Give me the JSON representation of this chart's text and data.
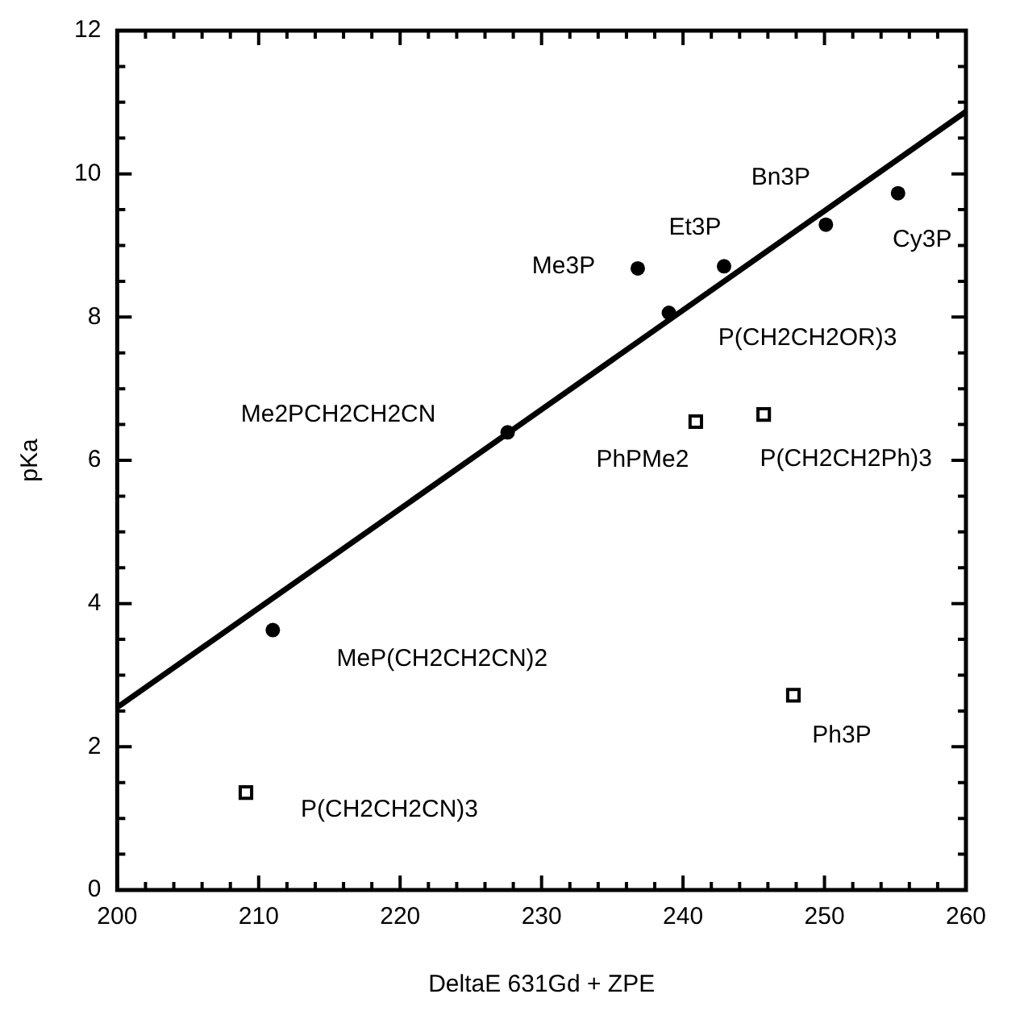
{
  "chart_data": {
    "type": "scatter",
    "xlabel": "DeltaE 631Gd + ZPE",
    "ylabel": "pKa",
    "xlim": [
      200,
      260
    ],
    "ylim": [
      0,
      12
    ],
    "xticks": [
      200,
      {
        "value": 202,
        "label": null
      },
      {
        "value": 204,
        "label": null
      },
      {
        "value": 206,
        "label": null
      },
      {
        "value": 208,
        "label": null
      },
      210,
      {
        "value": 212,
        "label": null
      },
      {
        "value": 214,
        "label": null
      },
      {
        "value": 216,
        "label": null
      },
      {
        "value": 218,
        "label": null
      },
      220,
      {
        "value": 222,
        "label": null
      },
      {
        "value": 224,
        "label": null
      },
      {
        "value": 226,
        "label": null
      },
      {
        "value": 228,
        "label": null
      },
      230,
      {
        "value": 232,
        "label": null
      },
      {
        "value": 234,
        "label": null
      },
      {
        "value": 236,
        "label": null
      },
      {
        "value": 238,
        "label": null
      },
      240,
      {
        "value": 242,
        "label": null
      },
      {
        "value": 244,
        "label": null
      },
      {
        "value": 246,
        "label": null
      },
      {
        "value": 248,
        "label": null
      },
      250,
      {
        "value": 252,
        "label": null
      },
      {
        "value": 254,
        "label": null
      },
      {
        "value": 256,
        "label": null
      },
      {
        "value": 258,
        "label": null
      },
      260
    ],
    "yticks": [
      0,
      {
        "value": 0.5,
        "label": null
      },
      {
        "value": 1,
        "label": null
      },
      {
        "value": 1.5,
        "label": null
      },
      2,
      {
        "value": 2.5,
        "label": null
      },
      {
        "value": 3,
        "label": null
      },
      {
        "value": 3.5,
        "label": null
      },
      4,
      {
        "value": 4.5,
        "label": null
      },
      {
        "value": 5,
        "label": null
      },
      {
        "value": 5.5,
        "label": null
      },
      6,
      {
        "value": 6.5,
        "label": null
      },
      {
        "value": 7,
        "label": null
      },
      {
        "value": 7.5,
        "label": null
      },
      8,
      {
        "value": 8.5,
        "label": null
      },
      {
        "value": 9,
        "label": null
      },
      {
        "value": 9.5,
        "label": null
      },
      10,
      {
        "value": 10.5,
        "label": null
      },
      {
        "value": 11,
        "label": null
      },
      {
        "value": 11.5,
        "label": null
      },
      12
    ],
    "grid": false,
    "legend": false,
    "series": [
      {
        "color": "#000000",
        "marker": "circle",
        "x": [
          211.0,
          227.6,
          236.8,
          239.0,
          242.9,
          250.1,
          255.2
        ],
        "values": [
          3.63,
          6.39,
          8.68,
          8.06,
          8.71,
          9.29,
          9.73
        ]
      },
      {
        "color": "#000000",
        "marker": "square",
        "x": [
          209.1,
          240.9,
          245.7,
          247.8
        ],
        "values": [
          1.36,
          6.54,
          6.64,
          2.72
        ]
      },
      {
        "type": "line",
        "color": "#000000",
        "marker": "none",
        "line_style": "solid",
        "x": [
          200,
          260
        ],
        "values": [
          2.55,
          10.87
        ]
      }
    ],
    "annotations": [
      {
        "text": "Me3P",
        "x": 236.8,
        "y": 8.68
      },
      {
        "text": "Et3P",
        "x": 242.9,
        "y": 8.71
      },
      {
        "text": "Bn3P",
        "x": 250.1,
        "y": 9.29
      },
      {
        "text": "Cy3P",
        "x": 255.2,
        "y": 9.73
      },
      {
        "text": "P(CH2CH2OR)3",
        "x": 239.0,
        "y": 8.06
      },
      {
        "text": "Me2PCH2CH2CN",
        "x": 227.6,
        "y": 6.39
      },
      {
        "text": "PhPMe2",
        "x": 240.9,
        "y": 6.54
      },
      {
        "text": "P(CH2CH2Ph)3",
        "x": 245.7,
        "y": 6.64
      },
      {
        "text": "MeP(CH2CH2CN)2",
        "x": 211.0,
        "y": 3.63
      },
      {
        "text": "Ph3P",
        "x": 247.8,
        "y": 2.72
      },
      {
        "text": "P(CH2CH2CN)3",
        "x": 209.1,
        "y": 1.36
      }
    ]
  }
}
